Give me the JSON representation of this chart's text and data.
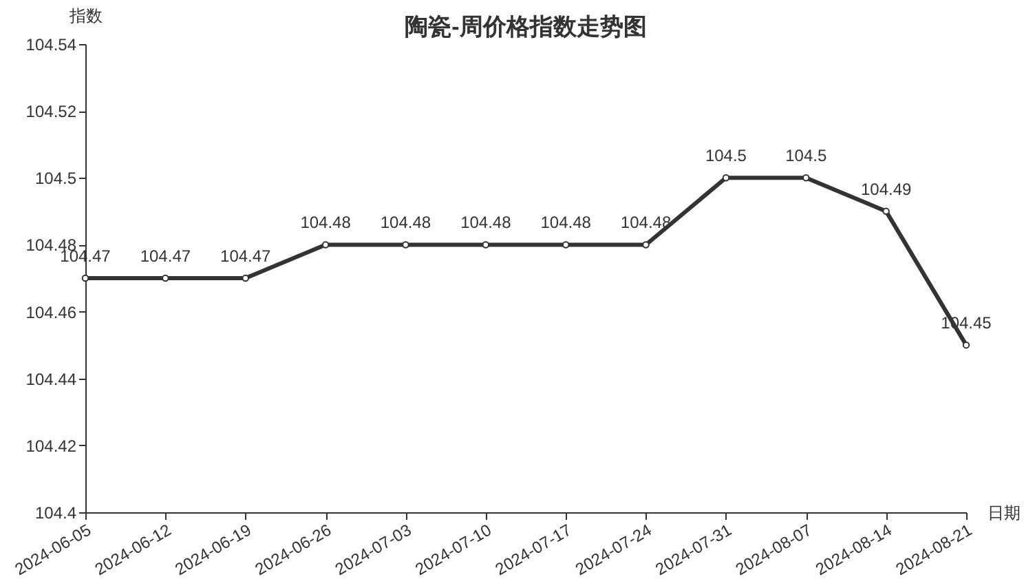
{
  "chart_data": {
    "type": "line",
    "title": "陶瓷-周价格指数走势图",
    "xlabel": "日期",
    "ylabel": "指数",
    "categories": [
      "2024-06-05",
      "2024-06-12",
      "2024-06-19",
      "2024-06-26",
      "2024-07-03",
      "2024-07-10",
      "2024-07-17",
      "2024-07-24",
      "2024-07-31",
      "2024-08-07",
      "2024-08-14",
      "2024-08-21"
    ],
    "series": [
      {
        "color": "#333333",
        "values": [
          104.47,
          104.47,
          104.47,
          104.48,
          104.48,
          104.48,
          104.48,
          104.48,
          104.5,
          104.5,
          104.49,
          104.45
        ]
      }
    ],
    "ylim": [
      104.4,
      104.54
    ],
    "yticks": [
      104.4,
      104.42,
      104.44,
      104.46,
      104.48,
      104.5,
      104.52,
      104.54
    ],
    "data_labels": true,
    "grid": false,
    "legend": false,
    "marker": "circle",
    "line_style": "solid"
  }
}
